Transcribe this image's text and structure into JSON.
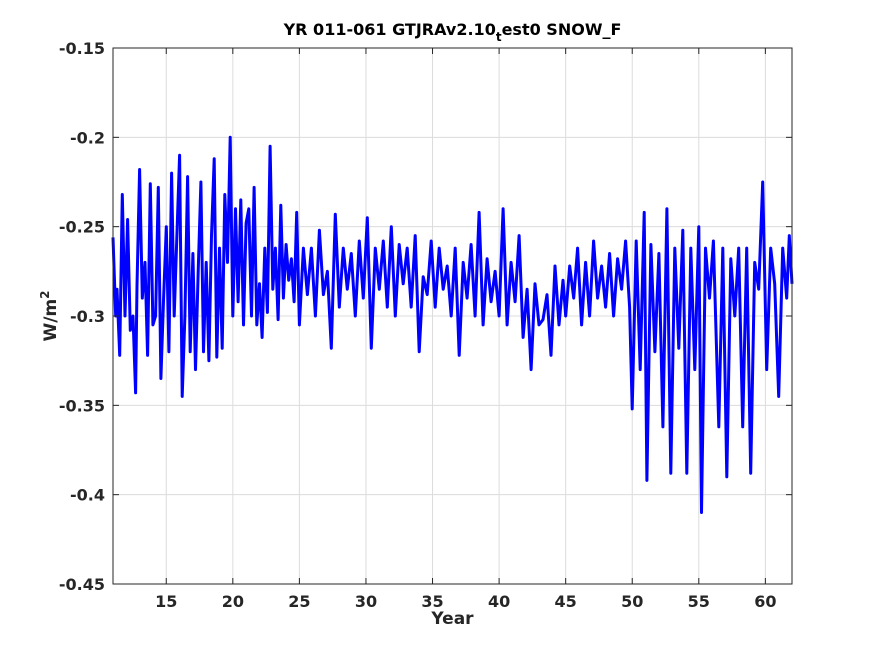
{
  "chart_data": {
    "type": "line",
    "title": "YR 011-061 GTJRAv2.10",
    "title_subscript": "t",
    "title_suffix": "est0 SNOW_F",
    "xlabel": "Year",
    "ylabel_main": "W/m",
    "ylabel_sup": "2",
    "xlim": [
      11,
      62
    ],
    "ylim": [
      -0.45,
      -0.15
    ],
    "xticks": [
      15,
      20,
      25,
      30,
      35,
      40,
      45,
      50,
      55,
      60
    ],
    "yticks": [
      -0.45,
      -0.4,
      -0.35,
      -0.3,
      -0.25,
      -0.2,
      -0.15
    ],
    "ytick_labels": [
      "-0.45",
      "-0.4",
      "-0.35",
      "-0.3",
      "-0.25",
      "-0.2",
      "-0.15"
    ],
    "grid": true,
    "line_color": "#0000ff",
    "series": [
      {
        "values": [
          [
            11.0,
            -0.256
          ],
          [
            11.2,
            -0.3
          ],
          [
            11.3,
            -0.285
          ],
          [
            11.5,
            -0.322
          ],
          [
            11.7,
            -0.232
          ],
          [
            11.9,
            -0.3
          ],
          [
            12.1,
            -0.246
          ],
          [
            12.3,
            -0.308
          ],
          [
            12.5,
            -0.3
          ],
          [
            12.7,
            -0.343
          ],
          [
            12.8,
            -0.283
          ],
          [
            13.0,
            -0.218
          ],
          [
            13.2,
            -0.29
          ],
          [
            13.4,
            -0.27
          ],
          [
            13.6,
            -0.322
          ],
          [
            13.8,
            -0.226
          ],
          [
            14.0,
            -0.305
          ],
          [
            14.2,
            -0.3
          ],
          [
            14.4,
            -0.228
          ],
          [
            14.6,
            -0.335
          ],
          [
            14.8,
            -0.29
          ],
          [
            15.0,
            -0.25
          ],
          [
            15.2,
            -0.32
          ],
          [
            15.4,
            -0.22
          ],
          [
            15.6,
            -0.3
          ],
          [
            15.8,
            -0.255
          ],
          [
            16.0,
            -0.21
          ],
          [
            16.2,
            -0.345
          ],
          [
            16.4,
            -0.3
          ],
          [
            16.6,
            -0.222
          ],
          [
            16.8,
            -0.32
          ],
          [
            17.0,
            -0.265
          ],
          [
            17.2,
            -0.33
          ],
          [
            17.4,
            -0.275
          ],
          [
            17.6,
            -0.225
          ],
          [
            17.8,
            -0.32
          ],
          [
            18.0,
            -0.27
          ],
          [
            18.2,
            -0.325
          ],
          [
            18.4,
            -0.255
          ],
          [
            18.6,
            -0.212
          ],
          [
            18.8,
            -0.323
          ],
          [
            19.0,
            -0.262
          ],
          [
            19.2,
            -0.318
          ],
          [
            19.4,
            -0.232
          ],
          [
            19.6,
            -0.27
          ],
          [
            19.8,
            -0.2
          ],
          [
            20.0,
            -0.3
          ],
          [
            20.2,
            -0.24
          ],
          [
            20.4,
            -0.292
          ],
          [
            20.6,
            -0.235
          ],
          [
            20.8,
            -0.305
          ],
          [
            21.0,
            -0.248
          ],
          [
            21.2,
            -0.24
          ],
          [
            21.4,
            -0.3
          ],
          [
            21.6,
            -0.228
          ],
          [
            21.8,
            -0.305
          ],
          [
            22.0,
            -0.282
          ],
          [
            22.2,
            -0.312
          ],
          [
            22.4,
            -0.262
          ],
          [
            22.6,
            -0.298
          ],
          [
            22.8,
            -0.205
          ],
          [
            23.0,
            -0.285
          ],
          [
            23.2,
            -0.262
          ],
          [
            23.4,
            -0.302
          ],
          [
            23.6,
            -0.238
          ],
          [
            23.8,
            -0.29
          ],
          [
            24.0,
            -0.26
          ],
          [
            24.2,
            -0.28
          ],
          [
            24.4,
            -0.268
          ],
          [
            24.6,
            -0.292
          ],
          [
            24.8,
            -0.242
          ],
          [
            25.0,
            -0.305
          ],
          [
            25.3,
            -0.262
          ],
          [
            25.6,
            -0.288
          ],
          [
            25.9,
            -0.262
          ],
          [
            26.2,
            -0.3
          ],
          [
            26.5,
            -0.252
          ],
          [
            26.8,
            -0.288
          ],
          [
            27.1,
            -0.275
          ],
          [
            27.4,
            -0.318
          ],
          [
            27.7,
            -0.243
          ],
          [
            28.0,
            -0.295
          ],
          [
            28.3,
            -0.262
          ],
          [
            28.6,
            -0.285
          ],
          [
            28.9,
            -0.265
          ],
          [
            29.2,
            -0.3
          ],
          [
            29.5,
            -0.258
          ],
          [
            29.8,
            -0.29
          ],
          [
            30.1,
            -0.245
          ],
          [
            30.4,
            -0.318
          ],
          [
            30.7,
            -0.262
          ],
          [
            31.0,
            -0.285
          ],
          [
            31.3,
            -0.258
          ],
          [
            31.6,
            -0.295
          ],
          [
            31.9,
            -0.25
          ],
          [
            32.2,
            -0.3
          ],
          [
            32.5,
            -0.26
          ],
          [
            32.8,
            -0.282
          ],
          [
            33.1,
            -0.262
          ],
          [
            33.4,
            -0.295
          ],
          [
            33.7,
            -0.255
          ],
          [
            34.0,
            -0.32
          ],
          [
            34.3,
            -0.278
          ],
          [
            34.6,
            -0.288
          ],
          [
            34.9,
            -0.258
          ],
          [
            35.2,
            -0.295
          ],
          [
            35.5,
            -0.262
          ],
          [
            35.8,
            -0.285
          ],
          [
            36.1,
            -0.272
          ],
          [
            36.4,
            -0.3
          ],
          [
            36.7,
            -0.262
          ],
          [
            37.0,
            -0.322
          ],
          [
            37.3,
            -0.27
          ],
          [
            37.6,
            -0.29
          ],
          [
            37.9,
            -0.26
          ],
          [
            38.2,
            -0.3
          ],
          [
            38.5,
            -0.242
          ],
          [
            38.8,
            -0.305
          ],
          [
            39.1,
            -0.268
          ],
          [
            39.4,
            -0.292
          ],
          [
            39.7,
            -0.275
          ],
          [
            40.0,
            -0.3
          ],
          [
            40.3,
            -0.24
          ],
          [
            40.6,
            -0.305
          ],
          [
            40.9,
            -0.27
          ],
          [
            41.2,
            -0.292
          ],
          [
            41.5,
            -0.255
          ],
          [
            41.8,
            -0.312
          ],
          [
            42.1,
            -0.285
          ],
          [
            42.4,
            -0.33
          ],
          [
            42.7,
            -0.282
          ],
          [
            43.0,
            -0.305
          ],
          [
            43.3,
            -0.302
          ],
          [
            43.6,
            -0.288
          ],
          [
            43.9,
            -0.322
          ],
          [
            44.2,
            -0.272
          ],
          [
            44.5,
            -0.305
          ],
          [
            44.8,
            -0.28
          ],
          [
            45.0,
            -0.3
          ],
          [
            45.3,
            -0.272
          ],
          [
            45.6,
            -0.29
          ],
          [
            45.9,
            -0.262
          ],
          [
            46.2,
            -0.305
          ],
          [
            46.5,
            -0.27
          ],
          [
            46.8,
            -0.3
          ],
          [
            47.1,
            -0.258
          ],
          [
            47.4,
            -0.29
          ],
          [
            47.7,
            -0.272
          ],
          [
            48.0,
            -0.295
          ],
          [
            48.3,
            -0.265
          ],
          [
            48.6,
            -0.3
          ],
          [
            48.9,
            -0.268
          ],
          [
            49.2,
            -0.285
          ],
          [
            49.5,
            -0.258
          ],
          [
            49.8,
            -0.295
          ],
          [
            50.0,
            -0.352
          ],
          [
            50.3,
            -0.258
          ],
          [
            50.6,
            -0.33
          ],
          [
            50.9,
            -0.242
          ],
          [
            51.1,
            -0.392
          ],
          [
            51.4,
            -0.26
          ],
          [
            51.7,
            -0.32
          ],
          [
            52.0,
            -0.265
          ],
          [
            52.3,
            -0.362
          ],
          [
            52.6,
            -0.24
          ],
          [
            52.9,
            -0.388
          ],
          [
            53.2,
            -0.262
          ],
          [
            53.5,
            -0.318
          ],
          [
            53.8,
            -0.252
          ],
          [
            54.1,
            -0.388
          ],
          [
            54.4,
            -0.262
          ],
          [
            54.7,
            -0.33
          ],
          [
            55.0,
            -0.25
          ],
          [
            55.2,
            -0.41
          ],
          [
            55.5,
            -0.262
          ],
          [
            55.8,
            -0.29
          ],
          [
            56.1,
            -0.258
          ],
          [
            56.5,
            -0.362
          ],
          [
            56.8,
            -0.262
          ],
          [
            57.1,
            -0.39
          ],
          [
            57.4,
            -0.268
          ],
          [
            57.7,
            -0.3
          ],
          [
            58.0,
            -0.262
          ],
          [
            58.3,
            -0.362
          ],
          [
            58.6,
            -0.262
          ],
          [
            58.9,
            -0.388
          ],
          [
            59.2,
            -0.27
          ],
          [
            59.5,
            -0.285
          ],
          [
            59.8,
            -0.225
          ],
          [
            60.1,
            -0.33
          ],
          [
            60.4,
            -0.262
          ],
          [
            60.7,
            -0.282
          ],
          [
            61.0,
            -0.345
          ],
          [
            61.3,
            -0.262
          ],
          [
            61.6,
            -0.29
          ],
          [
            61.8,
            -0.255
          ],
          [
            62.0,
            -0.282
          ]
        ]
      }
    ]
  }
}
